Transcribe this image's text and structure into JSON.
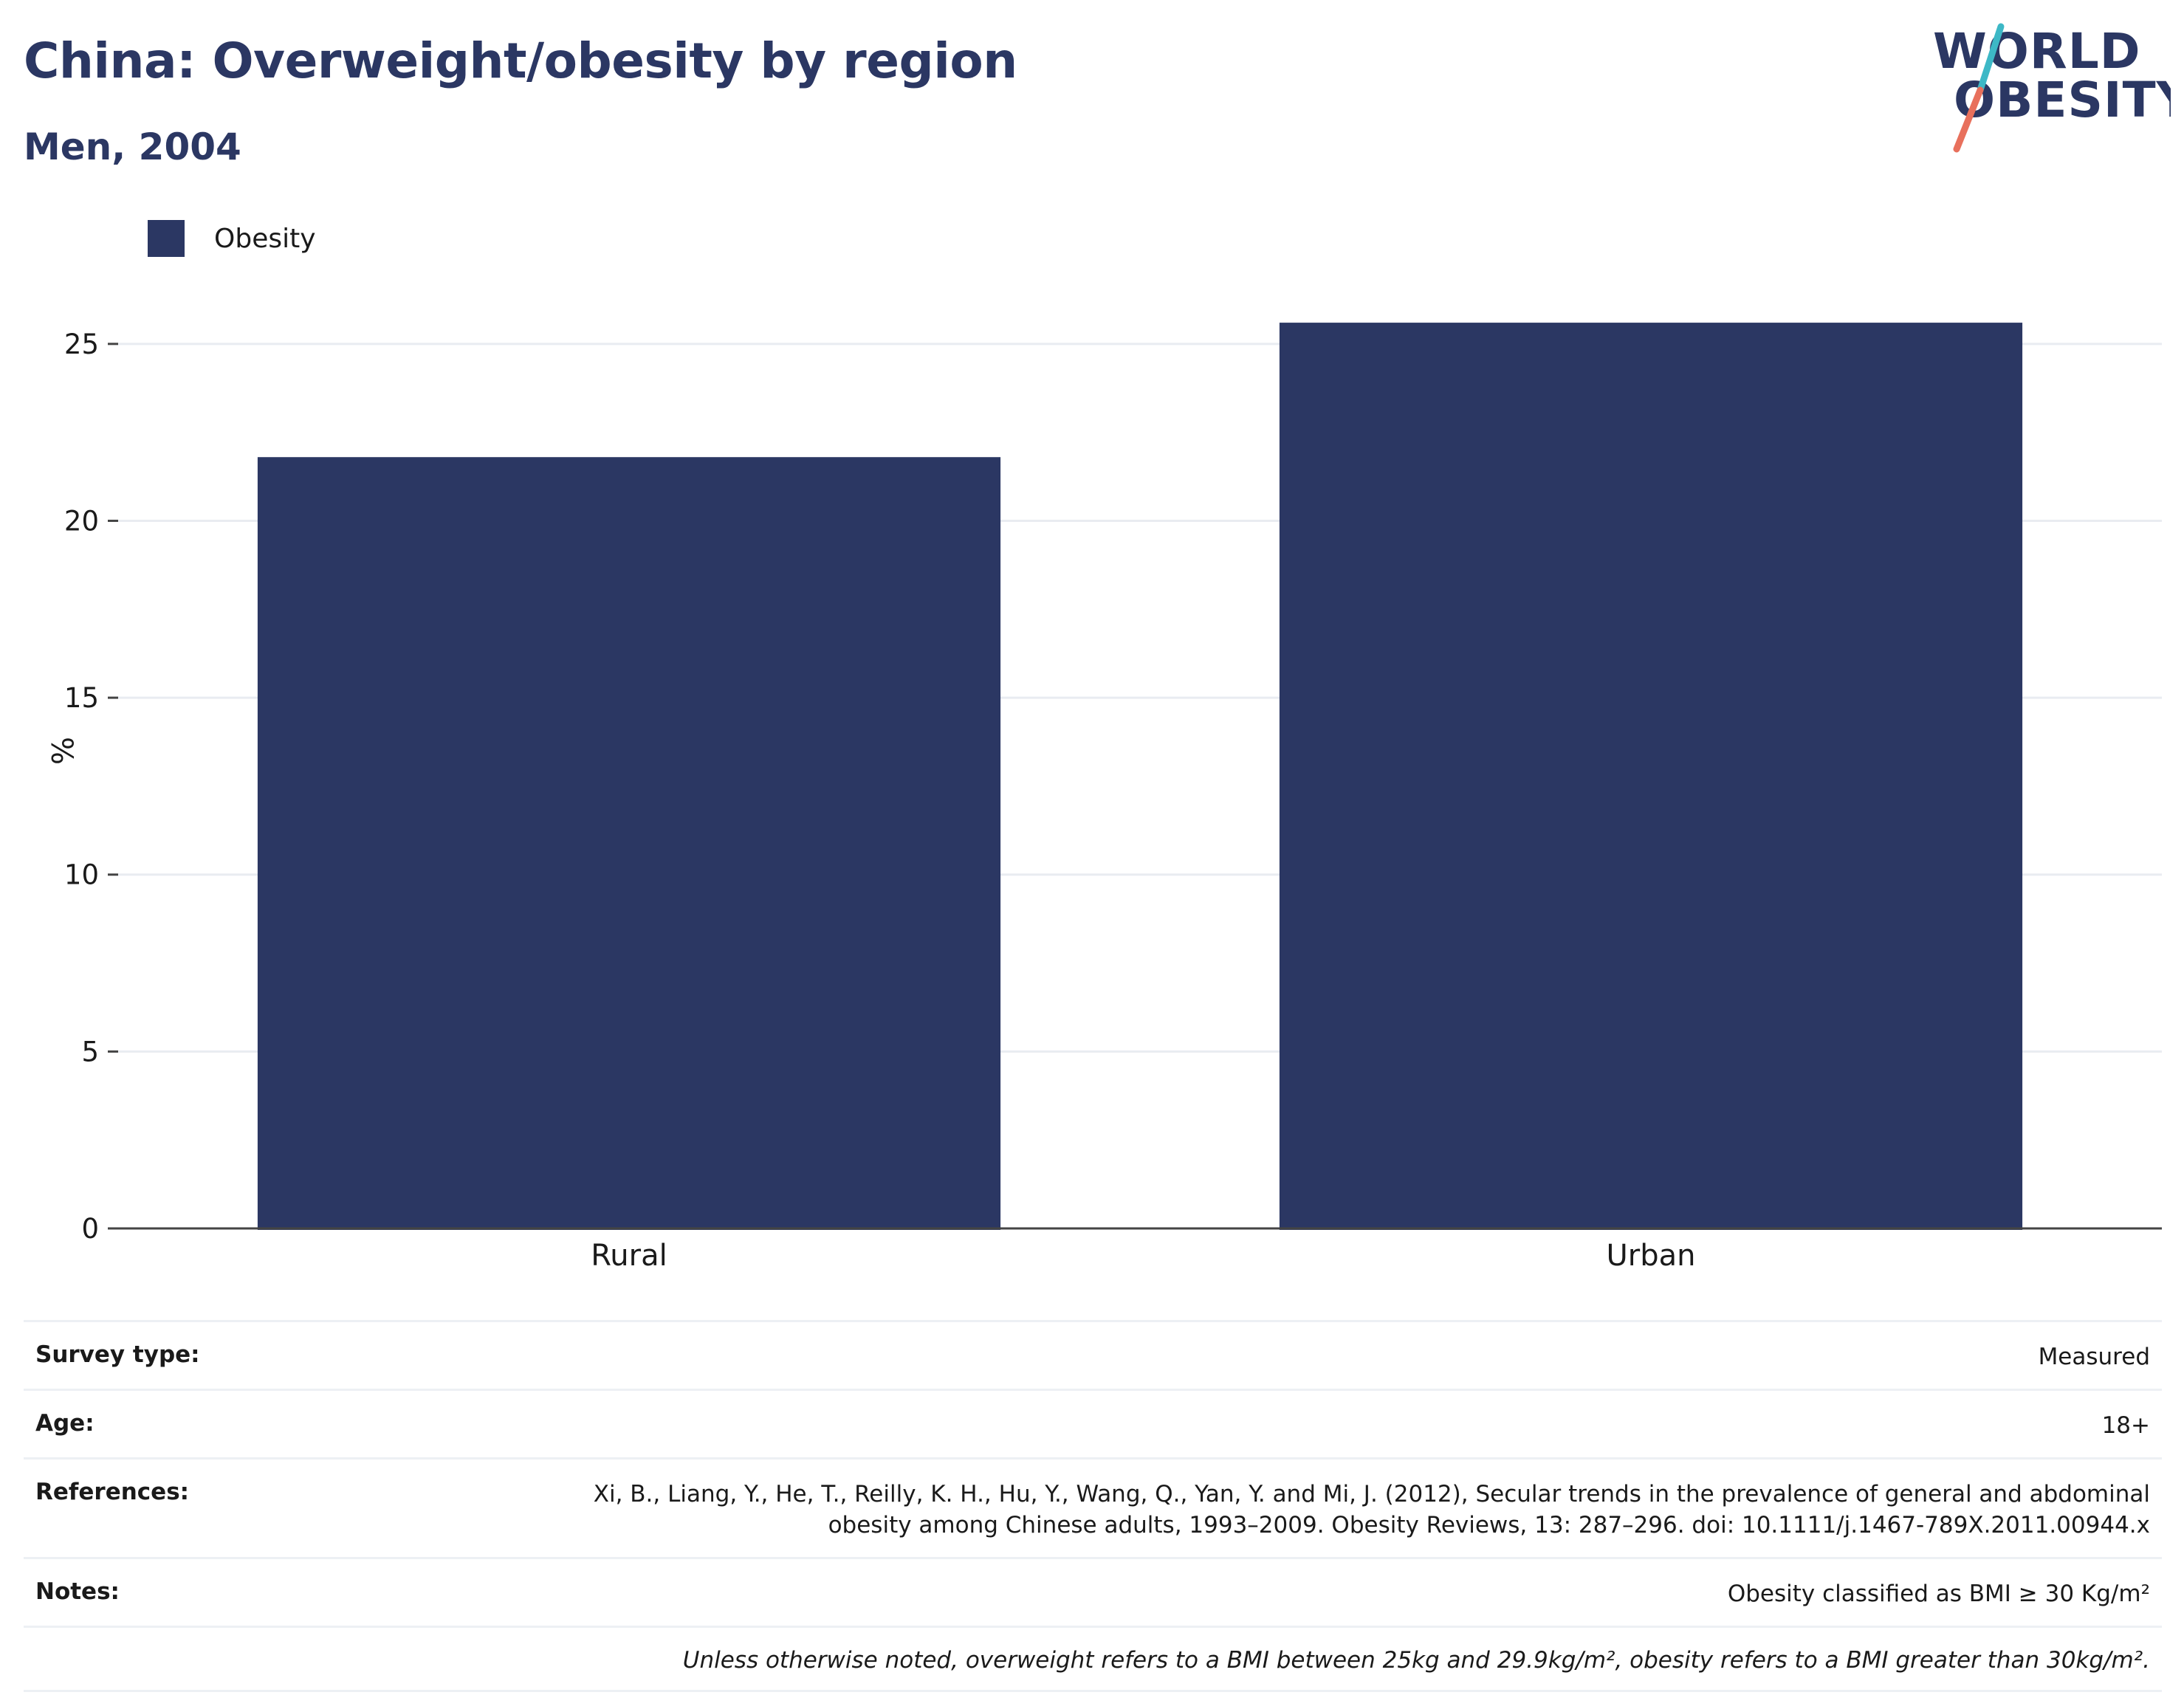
{
  "header": {
    "title": "China: Overweight/obesity by region",
    "subtitle": "Men, 2004"
  },
  "logo": {
    "line1": "WORLD",
    "line2": "OBESITY",
    "colors": {
      "text": "#2b3763",
      "slash_top": "#3db8c6",
      "slash_bottom": "#e8705c"
    }
  },
  "chart_data": {
    "type": "bar",
    "categories": [
      "Rural",
      "Urban"
    ],
    "series": [
      {
        "name": "Obesity",
        "values": [
          21.8,
          25.6
        ],
        "color": "#2b3763"
      }
    ],
    "xlabel": "",
    "ylabel": "%",
    "ylim": [
      0,
      27
    ],
    "yticks": [
      0,
      5,
      10,
      15,
      20,
      25
    ],
    "grid": true,
    "legend_position": "top-left"
  },
  "meta": {
    "survey_type": {
      "label": "Survey type:",
      "value": "Measured"
    },
    "age": {
      "label": "Age:",
      "value": "18+"
    },
    "references": {
      "label": "References:",
      "line1": "Xi, B., Liang, Y., He, T., Reilly, K. H., Hu, Y., Wang, Q., Yan, Y. and Mi, J. (2012), Secular trends in the prevalence of general and abdominal",
      "line2": "obesity among Chinese adults, 1993–2009. Obesity Reviews, 13: 287–296. doi: 10.1111/j.1467-789X.2011.00944.x"
    },
    "notes": {
      "label": "Notes:",
      "value": "Obesity classified as BMI ≥ 30 Kg/m²"
    },
    "footnote": "Unless otherwise noted, overweight refers to a BMI between 25kg and 29.9kg/m², obesity refers to a BMI greater than 30kg/m²."
  }
}
